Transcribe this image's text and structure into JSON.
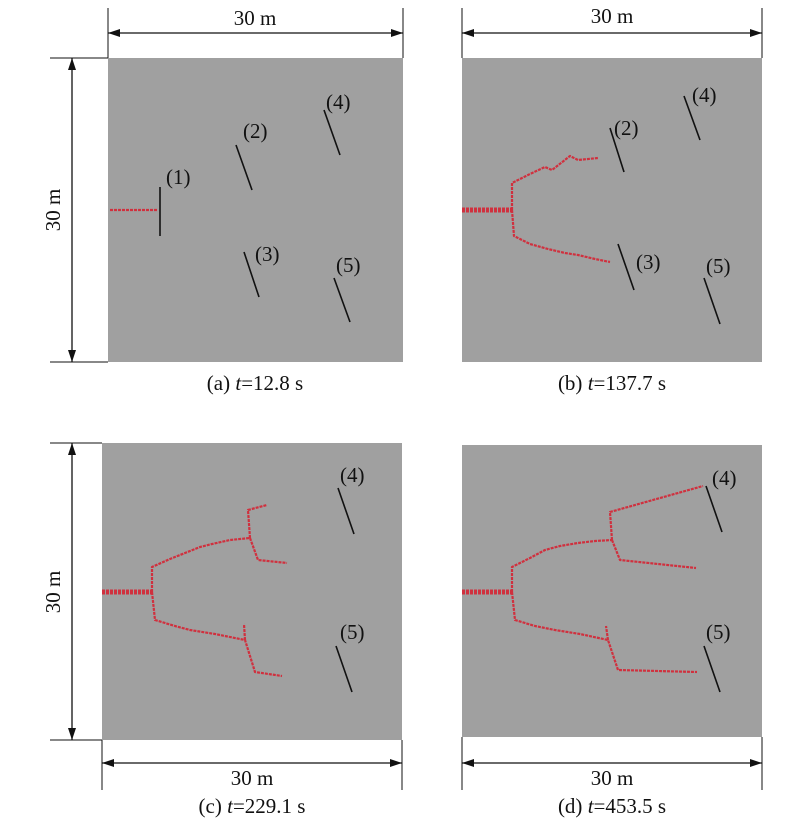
{
  "dimensions": {
    "a_top": "30 m",
    "a_left": "30 m",
    "b_top": "30 m",
    "c_left": "30 m",
    "c_bottom": "30 m",
    "d_bottom": "30 m"
  },
  "panels": [
    {
      "label": "(a)",
      "var": "t",
      "value": "=12.8 s",
      "fractures": [
        "(1)",
        "(2)",
        "(3)",
        "(4)",
        "(5)"
      ]
    },
    {
      "label": "(b)",
      "var": "t",
      "value": "=137.7 s",
      "fractures": [
        "(2)",
        "(3)",
        "(4)",
        "(5)"
      ]
    },
    {
      "label": "(c)",
      "var": "t",
      "value": "=229.1 s",
      "fractures": [
        "(4)",
        "(5)"
      ]
    },
    {
      "label": "(d)",
      "var": "t",
      "value": "=453.5 s",
      "fractures": [
        "(4)",
        "(5)"
      ]
    }
  ]
}
